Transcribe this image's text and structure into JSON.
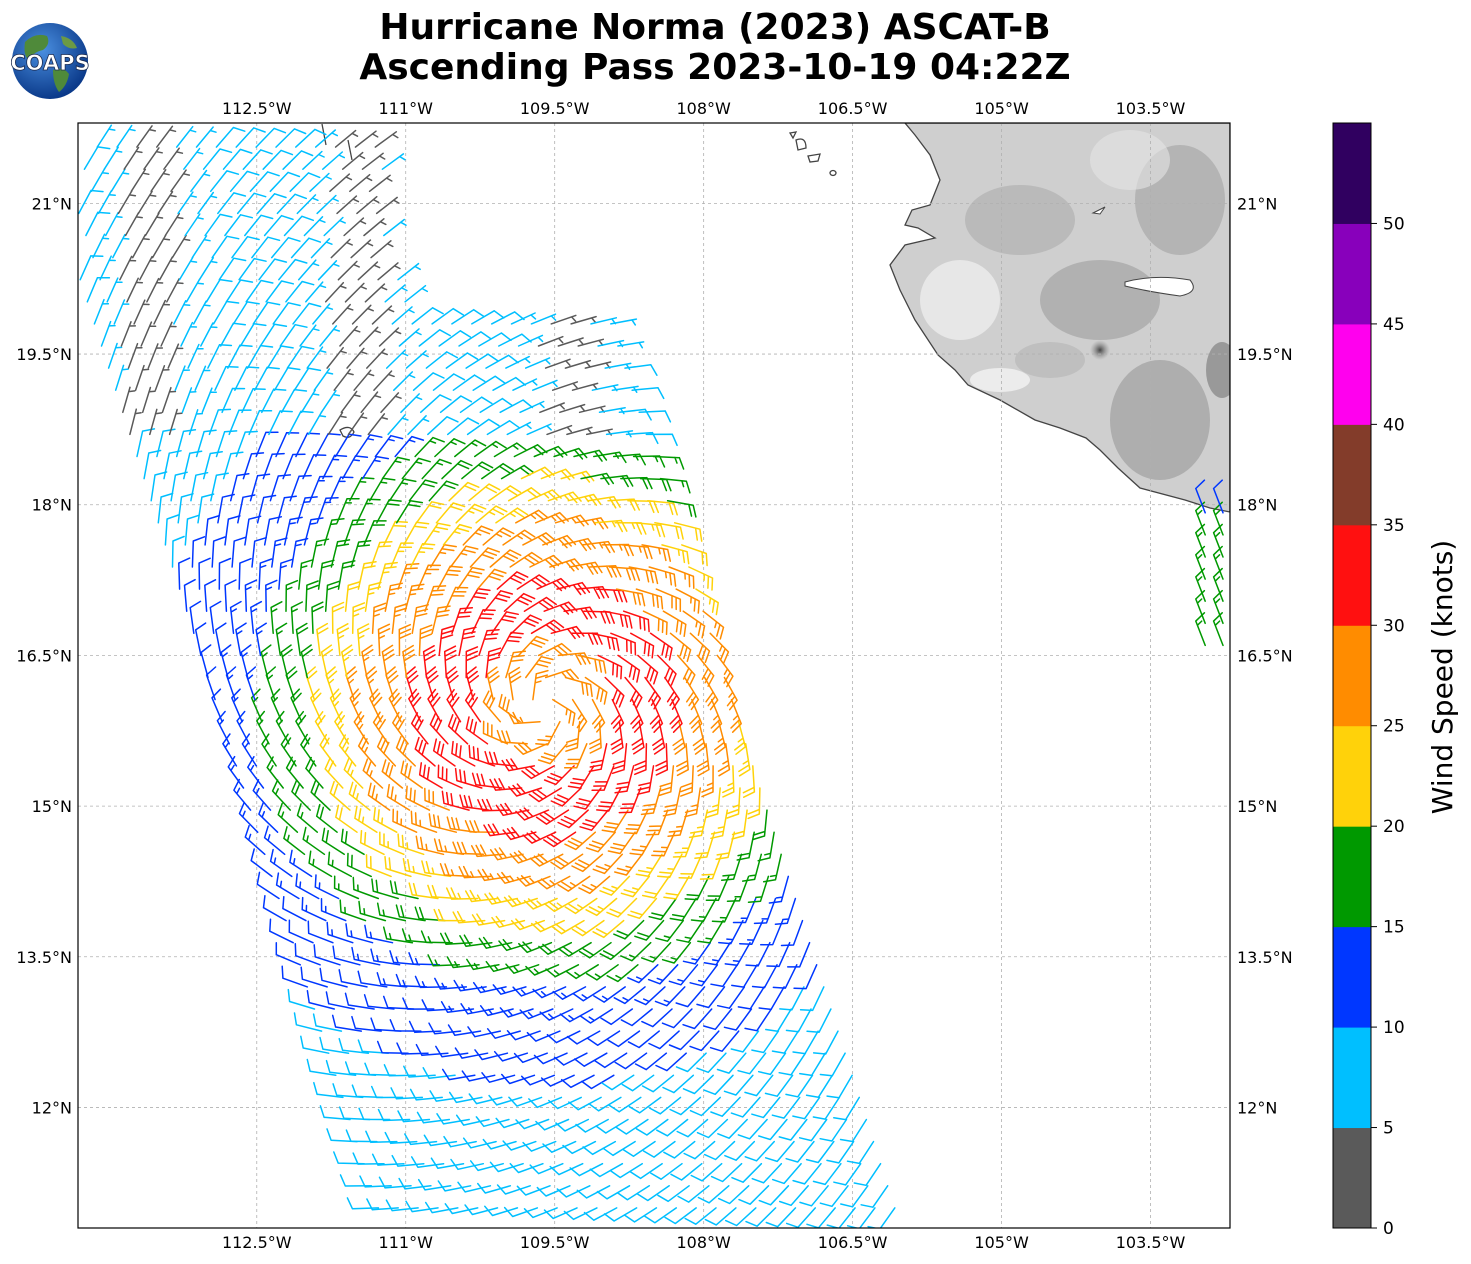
{
  "title": {
    "line1": "Hurricane Norma (2023) ASCAT-B",
    "line2": "Ascending Pass 2023-10-19 04:22Z"
  },
  "logo": {
    "text": "COAPS",
    "icon": "globe-icon"
  },
  "map": {
    "lon_range": [
      -114.3,
      -102.7
    ],
    "lat_range": [
      10.8,
      21.8
    ],
    "lon_ticks": [
      {
        "value": -112.5,
        "label": "112.5°W"
      },
      {
        "value": -111.0,
        "label": "111°W"
      },
      {
        "value": -109.5,
        "label": "109.5°W"
      },
      {
        "value": -108.0,
        "label": "108°W"
      },
      {
        "value": -106.5,
        "label": "106.5°W"
      },
      {
        "value": -105.0,
        "label": "105°W"
      },
      {
        "value": -103.5,
        "label": "103.5°W"
      }
    ],
    "lat_ticks": [
      {
        "value": 21.0,
        "label": "21°N"
      },
      {
        "value": 19.5,
        "label": "19.5°N"
      },
      {
        "value": 18.0,
        "label": "18°N"
      },
      {
        "value": 16.5,
        "label": "16.5°N"
      },
      {
        "value": 15.0,
        "label": "15°N"
      },
      {
        "value": 13.5,
        "label": "13.5°N"
      },
      {
        "value": 12.0,
        "label": "12°N"
      }
    ],
    "gridlines": true,
    "land_shading": "grayscale elevation"
  },
  "colorbar": {
    "label": "Wind Speed (knots)",
    "bounds": [
      0,
      5,
      10,
      15,
      20,
      25,
      30,
      35,
      40,
      45,
      50,
      55
    ],
    "tick_labels": [
      "0",
      "5",
      "10",
      "15",
      "20",
      "25",
      "30",
      "35",
      "40",
      "45",
      "50"
    ],
    "colors": [
      "#5a5a5a",
      "#00bfff",
      "#0037ff",
      "#009900",
      "#ffd20a",
      "#ff8c00",
      "#ff1010",
      "#833c2a",
      "#ff00ee",
      "#8800bb",
      "#300060"
    ]
  },
  "wind": {
    "units": "knots",
    "center": {
      "lon": -109.6,
      "lat": 16.0
    },
    "swath_cross_track_deg": 5.2,
    "note_visible": false
  }
}
